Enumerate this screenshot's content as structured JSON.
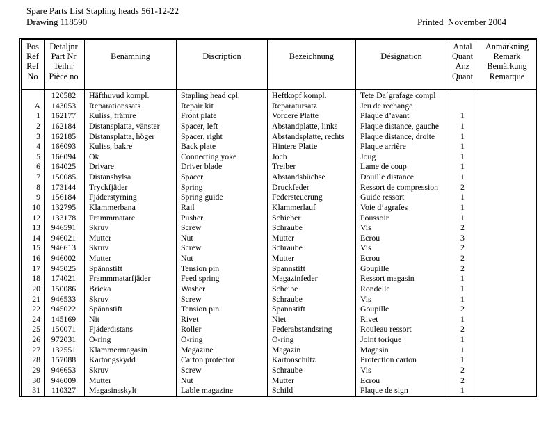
{
  "doc": {
    "title_line1": "Spare Parts List Stapling heads 561-12-22",
    "title_line2": "Drawing 118590",
    "printed_label": "Printed  November 2004"
  },
  "table": {
    "columns": [
      {
        "id": "pos",
        "label": "Pos\nRef\nRef\nNo"
      },
      {
        "id": "part",
        "label": "Detaljnr\nPart Nr\nTeilnr\nPièce no"
      },
      {
        "id": "benamning",
        "label": "Benämning"
      },
      {
        "id": "discription",
        "label": "Discription"
      },
      {
        "id": "bezeichnung",
        "label": "Bezeichnung"
      },
      {
        "id": "designation",
        "label": "Désignation"
      },
      {
        "id": "qty",
        "label": "Antal\nQuant\nAnz\nQuant"
      },
      {
        "id": "remark",
        "label": "Anmärkning\nRemark\nBemärkung\nRemarque"
      }
    ],
    "rows": [
      {
        "pos": "",
        "part": "120582",
        "benamning": "Häfthuvud kompl.",
        "discription": "Stapling head cpl.",
        "bezeichnung": "Heftkopf kompl.",
        "designation": "Tete Da´grafage compl",
        "qty": "",
        "remark": ""
      },
      {
        "pos": "A",
        "part": "143053",
        "benamning": "Reparationssats",
        "discription": "Repair kit",
        "bezeichnung": "Reparatursatz",
        "designation": "Jeu de rechange",
        "qty": "",
        "remark": ""
      },
      {
        "pos": "1",
        "part": "162177",
        "benamning": "Kuliss, främre",
        "discription": "Front plate",
        "bezeichnung": "Vordere Platte",
        "designation": "Plaque d’avant",
        "qty": "1",
        "remark": ""
      },
      {
        "pos": "2",
        "part": "162184",
        "benamning": "Distansplatta, vänster",
        "discription": "Spacer, left",
        "bezeichnung": "Abstandplatte, links",
        "designation": "Plaque distance, gauche",
        "qty": "1",
        "remark": ""
      },
      {
        "pos": "3",
        "part": "162185",
        "benamning": "Distansplatta, höger",
        "discription": "Spacer, right",
        "bezeichnung": "Abstandsplatte, rechts",
        "designation": "Plaque distance, droite",
        "qty": "1",
        "remark": ""
      },
      {
        "pos": "4",
        "part": "166093",
        "benamning": "Kuliss, bakre",
        "discription": "Back plate",
        "bezeichnung": "Hintere Platte",
        "designation": "Plaque arrière",
        "qty": "1",
        "remark": ""
      },
      {
        "pos": "5",
        "part": "166094",
        "benamning": "Ok",
        "discription": "Connecting yoke",
        "bezeichnung": "Joch",
        "designation": "Joug",
        "qty": "1",
        "remark": ""
      },
      {
        "pos": "6",
        "part": "164025",
        "benamning": "Drivare",
        "discription": "Driver blade",
        "bezeichnung": "Treiber",
        "designation": "Lame de coup",
        "qty": "1",
        "remark": ""
      },
      {
        "pos": "7",
        "part": "150085",
        "benamning": "Distanshylsa",
        "discription": "Spacer",
        "bezeichnung": "Abstandsbüchse",
        "designation": "Douille distance",
        "qty": "1",
        "remark": ""
      },
      {
        "pos": "8",
        "part": "173144",
        "benamning": "Tryckfjäder",
        "discription": "Spring",
        "bezeichnung": "Druckfeder",
        "designation": "Ressort de compression",
        "qty": "2",
        "remark": ""
      },
      {
        "pos": "9",
        "part": "156184",
        "benamning": "Fjäderstyrning",
        "discription": "Spring guide",
        "bezeichnung": "Federsteuerung",
        "designation": "Guide ressort",
        "qty": "1",
        "remark": ""
      },
      {
        "pos": "10",
        "part": "132795",
        "benamning": "Klammerbana",
        "discription": "Rail",
        "bezeichnung": "Klammerlauf",
        "designation": "Voie d’agrafes",
        "qty": "1",
        "remark": ""
      },
      {
        "pos": "12",
        "part": "133178",
        "benamning": "Frammmatare",
        "discription": "Pusher",
        "bezeichnung": "Schieber",
        "designation": "Poussoir",
        "qty": "1",
        "remark": ""
      },
      {
        "pos": "13",
        "part": "946591",
        "benamning": "Skruv",
        "discription": "Screw",
        "bezeichnung": "Schraube",
        "designation": "Vis",
        "qty": "2",
        "remark": ""
      },
      {
        "pos": "14",
        "part": "946021",
        "benamning": "Mutter",
        "discription": "Nut",
        "bezeichnung": "Mutter",
        "designation": "Ecrou",
        "qty": "3",
        "remark": ""
      },
      {
        "pos": "15",
        "part": "946613",
        "benamning": "Skruv",
        "discription": "Screw",
        "bezeichnung": "Schraube",
        "designation": "Vis",
        "qty": "2",
        "remark": ""
      },
      {
        "pos": "16",
        "part": "946002",
        "benamning": "Mutter",
        "discription": "Nut",
        "bezeichnung": "Mutter",
        "designation": "Ecrou",
        "qty": "2",
        "remark": ""
      },
      {
        "pos": "17",
        "part": "945025",
        "benamning": "Spännstift",
        "discription": "Tension pin",
        "bezeichnung": "Spannstift",
        "designation": "Goupille",
        "qty": "2",
        "remark": ""
      },
      {
        "pos": "18",
        "part": "174021",
        "benamning": "Frammmatarfjäder",
        "discription": "Feed spring",
        "bezeichnung": "Magazinfeder",
        "designation": "Ressort magasin",
        "qty": "1",
        "remark": ""
      },
      {
        "pos": "20",
        "part": "150086",
        "benamning": "Bricka",
        "discription": "Washer",
        "bezeichnung": "Scheibe",
        "designation": "Rondelle",
        "qty": "1",
        "remark": ""
      },
      {
        "pos": "21",
        "part": "946533",
        "benamning": "Skruv",
        "discription": "Screw",
        "bezeichnung": "Schraube",
        "designation": "Vis",
        "qty": "1",
        "remark": ""
      },
      {
        "pos": "22",
        "part": "945022",
        "benamning": "Spännstift",
        "discription": "Tension pin",
        "bezeichnung": "Spannstift",
        "designation": "Goupille",
        "qty": "2",
        "remark": ""
      },
      {
        "pos": "24",
        "part": "145169",
        "benamning": "Nit",
        "discription": "Rivet",
        "bezeichnung": "Niet",
        "designation": "Rivet",
        "qty": "1",
        "remark": ""
      },
      {
        "pos": "25",
        "part": "150071",
        "benamning": "Fjäderdistans",
        "discription": "Roller",
        "bezeichnung": "Federabstandsring",
        "designation": "Rouleau ressort",
        "qty": "2",
        "remark": ""
      },
      {
        "pos": "26",
        "part": "972031",
        "benamning": "O-ring",
        "discription": "O-ring",
        "bezeichnung": "O-ring",
        "designation": "Joint torique",
        "qty": "1",
        "remark": ""
      },
      {
        "pos": "27",
        "part": "132551",
        "benamning": "Klammermagasin",
        "discription": "Magazine",
        "bezeichnung": "Magazin",
        "designation": "Magasin",
        "qty": "1",
        "remark": ""
      },
      {
        "pos": "28",
        "part": "157088",
        "benamning": "Kartongskydd",
        "discription": "Carton protector",
        "bezeichnung": "Kartonschütz",
        "designation": "Protection carton",
        "qty": "1",
        "remark": ""
      },
      {
        "pos": "29",
        "part": "946653",
        "benamning": "Skruv",
        "discription": "Screw",
        "bezeichnung": "Schraube",
        "designation": "Vis",
        "qty": "2",
        "remark": ""
      },
      {
        "pos": "30",
        "part": "946009",
        "benamning": "Mutter",
        "discription": "Nut",
        "bezeichnung": "Mutter",
        "designation": "Ecrou",
        "qty": "2",
        "remark": ""
      },
      {
        "pos": "31",
        "part": "110327",
        "benamning": "Magasinsskylt",
        "discription": "Lable magazine",
        "bezeichnung": "Schild",
        "designation": "Plaque de sign",
        "qty": "1",
        "remark": ""
      }
    ]
  }
}
